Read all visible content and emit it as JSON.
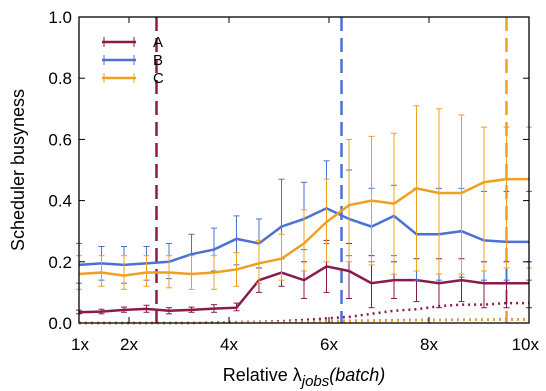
{
  "chart_data": {
    "type": "line",
    "xlabel_prefix": "Relative λ",
    "xlabel_sub": "jobs",
    "xlabel_suffix": "(batch)",
    "ylabel": "Scheduler busyness",
    "xlim": [
      1,
      10
    ],
    "ylim": [
      0,
      1.0
    ],
    "xticks": [
      1,
      2,
      4,
      6,
      8,
      10
    ],
    "xtick_labels": [
      "1x",
      "2x",
      "4x",
      "6x",
      "8x",
      "10x"
    ],
    "yticks": [
      0.0,
      0.2,
      0.4,
      0.6,
      0.8,
      1.0
    ],
    "ytick_labels": [
      "0.0",
      "0.2",
      "0.4",
      "0.6",
      "0.8",
      "1.0"
    ],
    "legend_position": "top-left",
    "x": [
      1.0,
      1.45,
      1.9,
      2.35,
      2.8,
      3.25,
      3.7,
      4.15,
      4.6,
      5.05,
      5.5,
      5.95,
      6.4,
      6.85,
      7.3,
      7.75,
      8.2,
      8.65,
      9.1,
      9.55,
      10.0
    ],
    "series": [
      {
        "name": "A",
        "color": "#8b1a4a",
        "values": [
          0.035,
          0.037,
          0.043,
          0.046,
          0.04,
          0.043,
          0.047,
          0.05,
          0.14,
          0.165,
          0.14,
          0.185,
          0.17,
          0.13,
          0.14,
          0.14,
          0.13,
          0.14,
          0.13,
          0.13,
          0.13
        ],
        "err_low": [
          0.03,
          0.03,
          0.035,
          0.035,
          0.03,
          0.035,
          0.035,
          0.04,
          0.1,
          0.12,
          0.08,
          0.1,
          0.08,
          0.05,
          0.08,
          0.07,
          0.05,
          0.07,
          0.05,
          0.05,
          0.05
        ],
        "err_high": [
          0.042,
          0.045,
          0.052,
          0.058,
          0.05,
          0.052,
          0.06,
          0.065,
          0.18,
          0.21,
          0.2,
          0.27,
          0.26,
          0.22,
          0.2,
          0.21,
          0.21,
          0.21,
          0.2,
          0.2,
          0.2
        ],
        "dotted": [
          0.0,
          0.0,
          0.0,
          0.0,
          0.0,
          0.0,
          0.002,
          0.003,
          0.004,
          0.006,
          0.01,
          0.015,
          0.02,
          0.03,
          0.04,
          0.045,
          0.055,
          0.06,
          0.06,
          0.065,
          0.065
        ]
      },
      {
        "name": "B",
        "color": "#4a72d4",
        "values": [
          0.19,
          0.195,
          0.19,
          0.195,
          0.2,
          0.225,
          0.24,
          0.275,
          0.26,
          0.315,
          0.34,
          0.375,
          0.34,
          0.315,
          0.35,
          0.29,
          0.29,
          0.3,
          0.27,
          0.265,
          0.265
        ],
        "err_low": [
          0.13,
          0.14,
          0.13,
          0.14,
          0.145,
          0.16,
          0.17,
          0.19,
          0.18,
          0.21,
          0.24,
          0.26,
          0.22,
          0.2,
          0.22,
          0.14,
          0.14,
          0.15,
          0.14,
          0.14,
          0.14
        ],
        "err_high": [
          0.26,
          0.25,
          0.25,
          0.25,
          0.26,
          0.29,
          0.31,
          0.35,
          0.34,
          0.47,
          0.46,
          0.53,
          0.5,
          0.44,
          0.45,
          0.44,
          0.44,
          0.44,
          0.43,
          0.43,
          0.43
        ],
        "dotted": [
          0.0,
          0.0,
          0.0,
          0.0,
          0.0,
          0.0,
          0.002,
          0.003,
          0.003,
          0.004,
          0.005,
          0.006,
          0.007,
          0.008,
          0.009,
          0.01,
          0.01,
          0.011,
          0.011,
          0.012,
          0.012
        ]
      },
      {
        "name": "C",
        "color": "#f0a020",
        "values": [
          0.16,
          0.165,
          0.155,
          0.165,
          0.165,
          0.16,
          0.165,
          0.175,
          0.195,
          0.21,
          0.26,
          0.33,
          0.385,
          0.4,
          0.39,
          0.44,
          0.425,
          0.425,
          0.46,
          0.47,
          0.47
        ],
        "err_low": [
          0.11,
          0.12,
          0.11,
          0.12,
          0.115,
          0.11,
          0.11,
          0.12,
          0.13,
          0.14,
          0.17,
          0.2,
          0.2,
          0.19,
          0.16,
          0.17,
          0.16,
          0.16,
          0.17,
          0.18,
          0.18
        ],
        "err_high": [
          0.22,
          0.22,
          0.22,
          0.22,
          0.22,
          0.22,
          0.22,
          0.23,
          0.27,
          0.29,
          0.37,
          0.47,
          0.6,
          0.61,
          0.62,
          0.71,
          0.7,
          0.68,
          0.64,
          0.64,
          0.64
        ],
        "dotted": [
          0.0,
          0.0,
          0.0,
          0.0,
          0.0,
          0.0,
          0.001,
          0.002,
          0.003,
          0.003,
          0.004,
          0.005,
          0.006,
          0.007,
          0.008,
          0.009,
          0.01,
          0.01,
          0.011,
          0.011,
          0.011
        ]
      }
    ],
    "vlines": [
      {
        "x": 2.55,
        "color": "#8b1a4a"
      },
      {
        "x": 6.25,
        "color": "#4a72d4"
      },
      {
        "x": 9.55,
        "color": "#f0a020"
      }
    ]
  }
}
